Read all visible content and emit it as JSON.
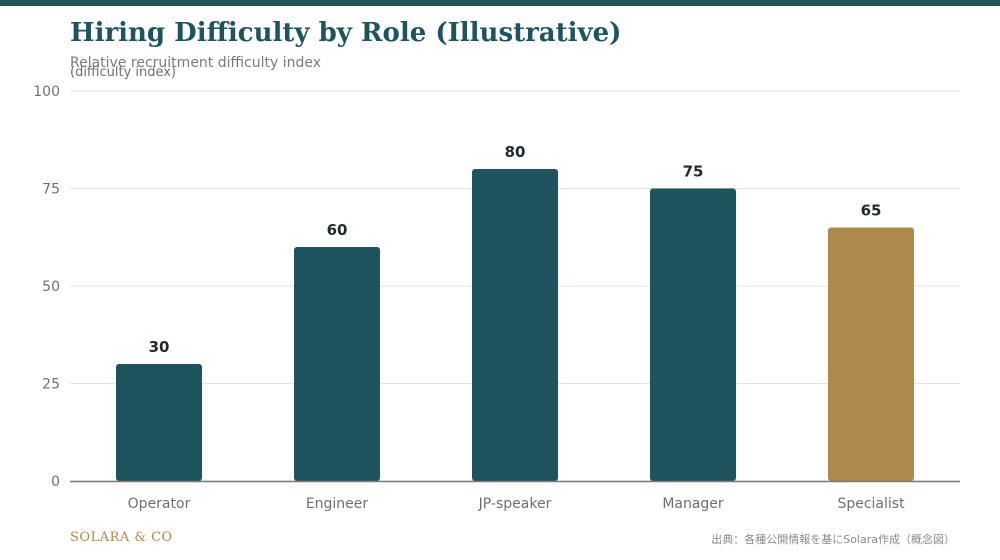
{
  "chart_data": {
    "type": "bar",
    "title": "Hiring Difficulty by Role (Illustrative)",
    "subtitle": "Relative recruitment difficulty index",
    "ylabel": "(difficulty index)",
    "xlabel": "",
    "categories": [
      "Operator",
      "Engineer",
      "JP-speaker",
      "Manager",
      "Specialist"
    ],
    "values": [
      30,
      60,
      80,
      75,
      65
    ],
    "ylim": [
      0,
      100
    ],
    "yticks": [
      0,
      25,
      50,
      75,
      100
    ],
    "grid": true,
    "legend": "none",
    "highlight_index": 4
  },
  "footer": {
    "brand": "SOLARA & CO",
    "source": "出典：各種公開情報を基にSolara作成（概念図）"
  },
  "colors": {
    "primary": "#1f545f",
    "highlight": "#ae894c",
    "grid": "#e3e3e3",
    "axis": "#7a7a7a",
    "label": "#1f2a2e",
    "tick": "#6f6f6f"
  }
}
